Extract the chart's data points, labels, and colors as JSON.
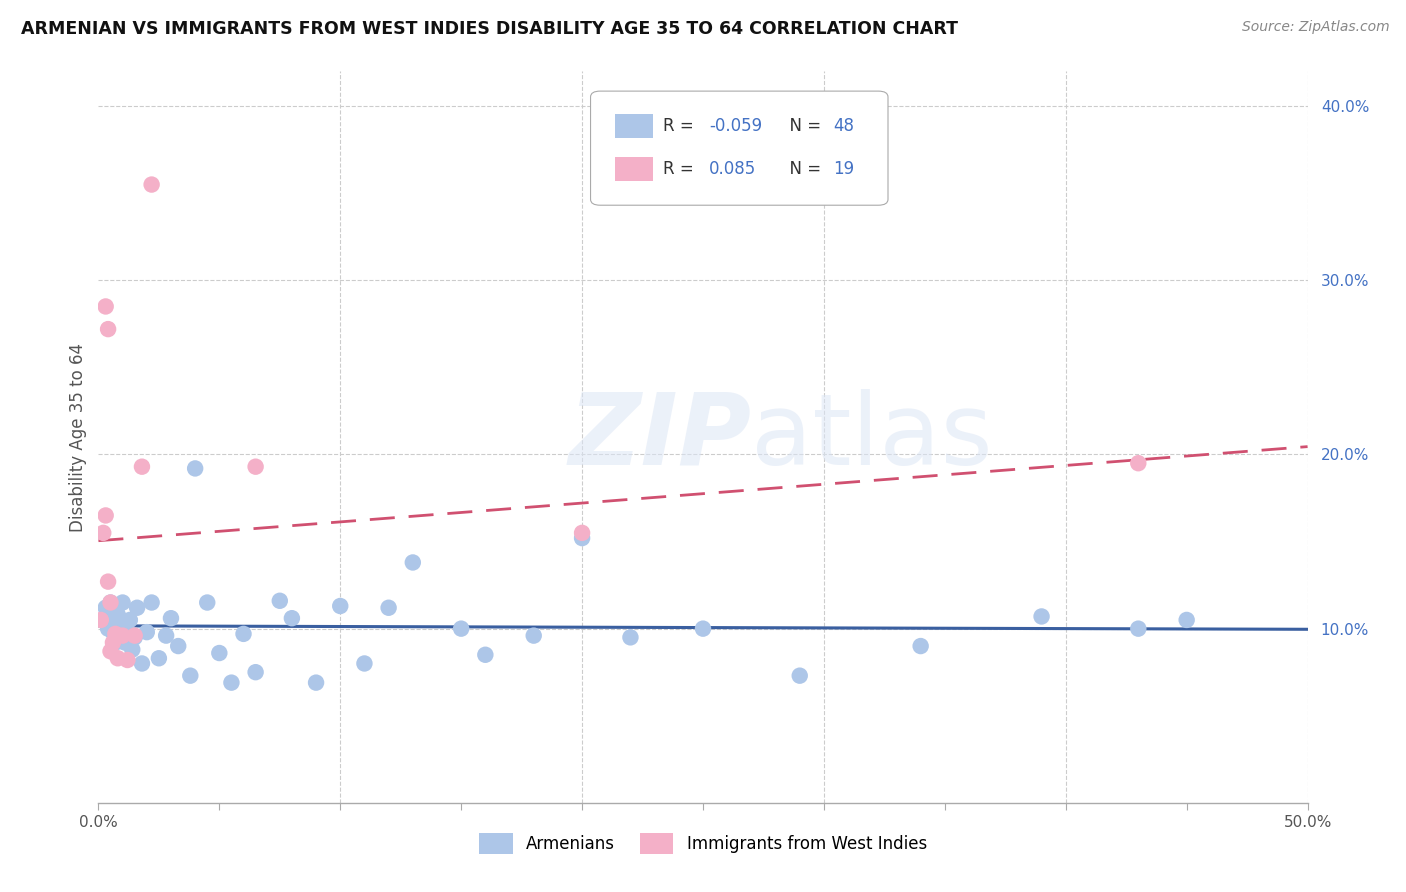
{
  "title": "ARMENIAN VS IMMIGRANTS FROM WEST INDIES DISABILITY AGE 35 TO 64 CORRELATION CHART",
  "source": "Source: ZipAtlas.com",
  "ylabel": "Disability Age 35 to 64",
  "xlim": [
    0.0,
    0.5
  ],
  "ylim": [
    0.0,
    0.42
  ],
  "ytick_vals": [
    0.1,
    0.2,
    0.3,
    0.4
  ],
  "ytick_labels": [
    "10.0%",
    "20.0%",
    "30.0%",
    "40.0%"
  ],
  "xtick_vals": [
    0.0,
    0.05,
    0.1,
    0.15,
    0.2,
    0.25,
    0.3,
    0.35,
    0.4,
    0.45,
    0.5
  ],
  "xtick_labels": [
    "0.0%",
    "",
    "",
    "",
    "",
    "",
    "",
    "",
    "",
    "",
    "50.0%"
  ],
  "legend_r_blue": "-0.059",
  "legend_n_blue": "48",
  "legend_r_pink": "0.085",
  "legend_n_pink": "19",
  "blue_scatter_color": "#adc6e8",
  "pink_scatter_color": "#f4b0c8",
  "blue_line_color": "#3A5FA0",
  "pink_line_color": "#D05070",
  "watermark_color": "#dce6f5",
  "armenians_x": [
    0.003,
    0.004,
    0.005,
    0.005,
    0.006,
    0.007,
    0.007,
    0.008,
    0.009,
    0.01,
    0.011,
    0.012,
    0.013,
    0.014,
    0.015,
    0.016,
    0.018,
    0.02,
    0.022,
    0.025,
    0.028,
    0.03,
    0.033,
    0.038,
    0.04,
    0.045,
    0.05,
    0.055,
    0.06,
    0.065,
    0.075,
    0.08,
    0.09,
    0.1,
    0.11,
    0.12,
    0.13,
    0.15,
    0.16,
    0.18,
    0.2,
    0.22,
    0.25,
    0.29,
    0.34,
    0.39,
    0.43,
    0.45
  ],
  "armenians_y": [
    0.112,
    0.1,
    0.115,
    0.106,
    0.098,
    0.112,
    0.092,
    0.108,
    0.1,
    0.115,
    0.092,
    0.098,
    0.105,
    0.088,
    0.095,
    0.112,
    0.08,
    0.098,
    0.115,
    0.083,
    0.096,
    0.106,
    0.09,
    0.073,
    0.192,
    0.115,
    0.086,
    0.069,
    0.097,
    0.075,
    0.116,
    0.106,
    0.069,
    0.113,
    0.08,
    0.112,
    0.138,
    0.1,
    0.085,
    0.096,
    0.152,
    0.095,
    0.1,
    0.073,
    0.09,
    0.107,
    0.1,
    0.105
  ],
  "westindies_x": [
    0.001,
    0.002,
    0.003,
    0.003,
    0.004,
    0.004,
    0.005,
    0.005,
    0.006,
    0.007,
    0.008,
    0.01,
    0.012,
    0.015,
    0.018,
    0.022,
    0.065,
    0.2,
    0.43
  ],
  "westindies_y": [
    0.105,
    0.155,
    0.165,
    0.285,
    0.272,
    0.127,
    0.115,
    0.087,
    0.092,
    0.097,
    0.083,
    0.096,
    0.082,
    0.096,
    0.193,
    0.355,
    0.193,
    0.155,
    0.195
  ]
}
